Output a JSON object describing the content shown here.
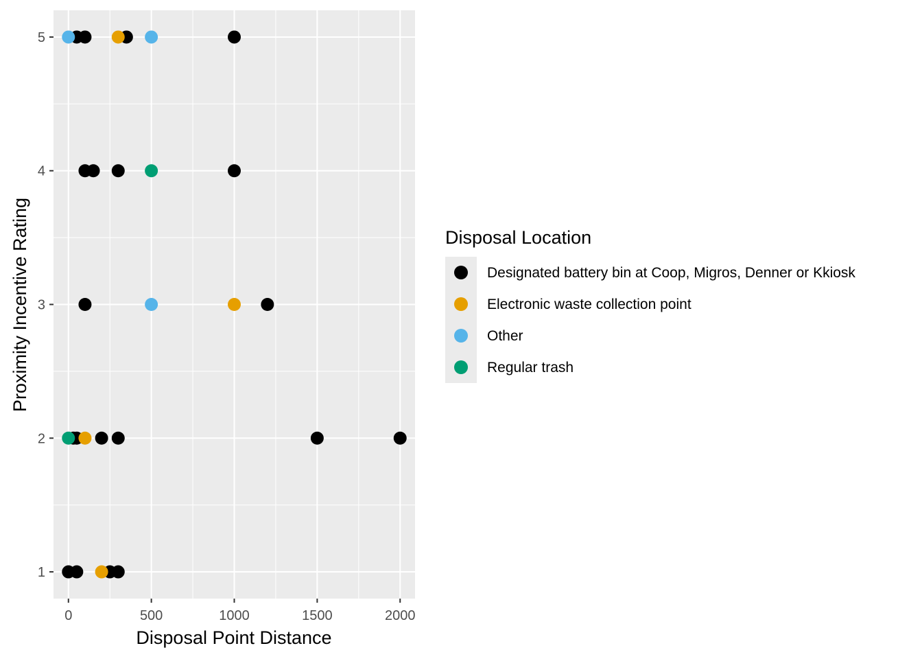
{
  "chart_data": {
    "type": "scatter",
    "xlabel": "Disposal Point Distance",
    "ylabel": "Proximity Incentive Rating",
    "xlim": [
      -90,
      2090
    ],
    "ylim": [
      0.8,
      5.2
    ],
    "x_ticks": [
      0,
      500,
      1000,
      1500,
      2000
    ],
    "x_tick_labels": [
      "0",
      "500",
      "1000",
      "1500",
      "2000"
    ],
    "x_minor": [
      250,
      750,
      1250,
      1750
    ],
    "y_ticks": [
      1,
      2,
      3,
      4,
      5
    ],
    "y_tick_labels": [
      "1",
      "2",
      "3",
      "4",
      "5"
    ],
    "y_minor": [
      1.5,
      2.5,
      3.5,
      4.5
    ],
    "grid": true,
    "legend": {
      "title": "Disposal Location",
      "position": "right"
    },
    "series": [
      {
        "name": "Designated battery bin at Coop, Migros, Denner or Kkiosk",
        "color": "#000000",
        "points": [
          [
            50,
            5
          ],
          [
            100,
            5
          ],
          [
            350,
            5
          ],
          [
            1000,
            5
          ],
          [
            100,
            4
          ],
          [
            150,
            4
          ],
          [
            300,
            4
          ],
          [
            1000,
            4
          ],
          [
            100,
            3
          ],
          [
            1200,
            3
          ],
          [
            30,
            2
          ],
          [
            50,
            2
          ],
          [
            200,
            2
          ],
          [
            300,
            2
          ],
          [
            1500,
            2
          ],
          [
            2000,
            2
          ],
          [
            0,
            1
          ],
          [
            50,
            1
          ],
          [
            250,
            1
          ],
          [
            300,
            1
          ]
        ]
      },
      {
        "name": "Electronic waste collection point",
        "color": "#E69F00",
        "points": [
          [
            300,
            5
          ],
          [
            1000,
            3
          ],
          [
            100,
            2
          ],
          [
            200,
            1
          ]
        ]
      },
      {
        "name": "Other",
        "color": "#56B4E9",
        "points": [
          [
            0,
            5
          ],
          [
            500,
            5
          ],
          [
            500,
            3
          ]
        ]
      },
      {
        "name": "Regular trash",
        "color": "#009E73",
        "points": [
          [
            500,
            4
          ],
          [
            0,
            2
          ]
        ]
      }
    ]
  }
}
